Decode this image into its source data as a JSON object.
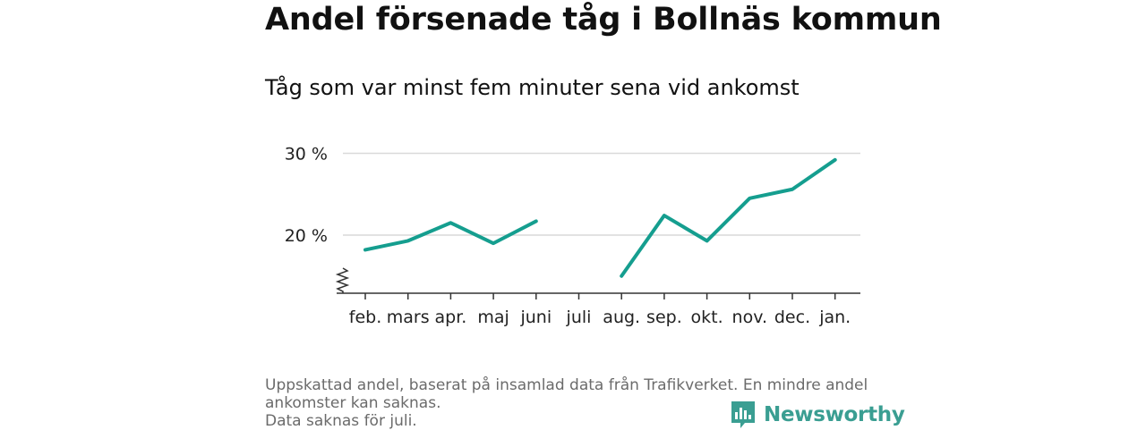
{
  "title": "Andel försenade tåg i Bollnäs kommun",
  "subtitle": "Tåg som var minst fem minuter sena vid ankomst",
  "footer": {
    "line1": "Uppskattad andel, baserat på insamlad data från Trafikverket. En mindre andel",
    "line2": "ankomster kan saknas.",
    "line3": "Data saknas för juli."
  },
  "brand": {
    "name": "Newsworthy",
    "icon": "bar-chart-icon",
    "color": "#3a9e92"
  },
  "colors": {
    "line": "#159e8f",
    "grid": "#d9d9d9",
    "axis": "#333333"
  },
  "chart_data": {
    "type": "line",
    "title": "Andel försenade tåg i Bollnäs kommun",
    "subtitle": "Tåg som var minst fem minuter sena vid ankomst",
    "categories": [
      "feb.",
      "mars",
      "apr.",
      "maj",
      "juni",
      "juli",
      "aug.",
      "sep.",
      "okt.",
      "nov.",
      "dec.",
      "jan."
    ],
    "series": [
      {
        "values": [
          18.2,
          19.3,
          21.5,
          19.0,
          21.7,
          null,
          15.0,
          22.4,
          19.3,
          24.5,
          25.6,
          29.2
        ]
      }
    ],
    "yticks": [
      20,
      30
    ],
    "ytick_labels": [
      "20 %",
      "30 %"
    ],
    "ylim": [
      13,
      31
    ],
    "y_axis_break": true,
    "grid": true
  }
}
